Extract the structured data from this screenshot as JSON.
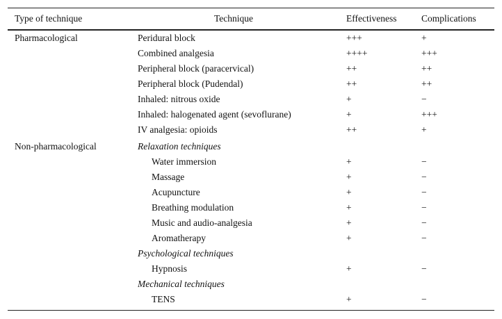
{
  "table": {
    "header": [
      "Type of technique",
      "Technique",
      "Effectiveness",
      "Complications"
    ],
    "groups": [
      {
        "type": "Pharmacological",
        "subgroups": [
          {
            "rows": [
              {
                "technique": "Peridural block",
                "effectiveness": "+++",
                "complications": "+"
              },
              {
                "technique": "Combined analgesia",
                "effectiveness": "++++",
                "complications": "+++"
              },
              {
                "technique": "Peripheral block (paracervical)",
                "effectiveness": "++",
                "complications": "++"
              },
              {
                "technique": "Peripheral block (Pudendal)",
                "effectiveness": "++",
                "complications": "++"
              },
              {
                "technique": "Inhaled: nitrous oxide",
                "effectiveness": "+",
                "complications": "−"
              },
              {
                "technique": "Inhaled: halogenated agent (sevoflurane)",
                "effectiveness": "+",
                "complications": "+++"
              },
              {
                "technique": "IV analgesia: opioids",
                "effectiveness": "++",
                "complications": "+"
              }
            ]
          }
        ]
      },
      {
        "type": "Non-pharmacological",
        "subgroups": [
          {
            "heading": "Relaxation techniques",
            "rows": [
              {
                "technique": "Water immersion",
                "effectiveness": "+",
                "complications": "−"
              },
              {
                "technique": "Massage",
                "effectiveness": "+",
                "complications": "−"
              },
              {
                "technique": "Acupuncture",
                "effectiveness": "+",
                "complications": "−"
              },
              {
                "technique": "Breathing modulation",
                "effectiveness": "+",
                "complications": "−"
              },
              {
                "technique": "Music and audio-analgesia",
                "effectiveness": "+",
                "complications": "−"
              },
              {
                "technique": "Aromatherapy",
                "effectiveness": "+",
                "complications": "−"
              }
            ]
          },
          {
            "heading": "Psychological techniques",
            "rows": [
              {
                "technique": "Hypnosis",
                "effectiveness": "+",
                "complications": "−"
              }
            ]
          },
          {
            "heading": "Mechanical techniques",
            "rows": [
              {
                "technique": "TENS",
                "effectiveness": "+",
                "complications": "−"
              }
            ]
          }
        ]
      }
    ]
  }
}
